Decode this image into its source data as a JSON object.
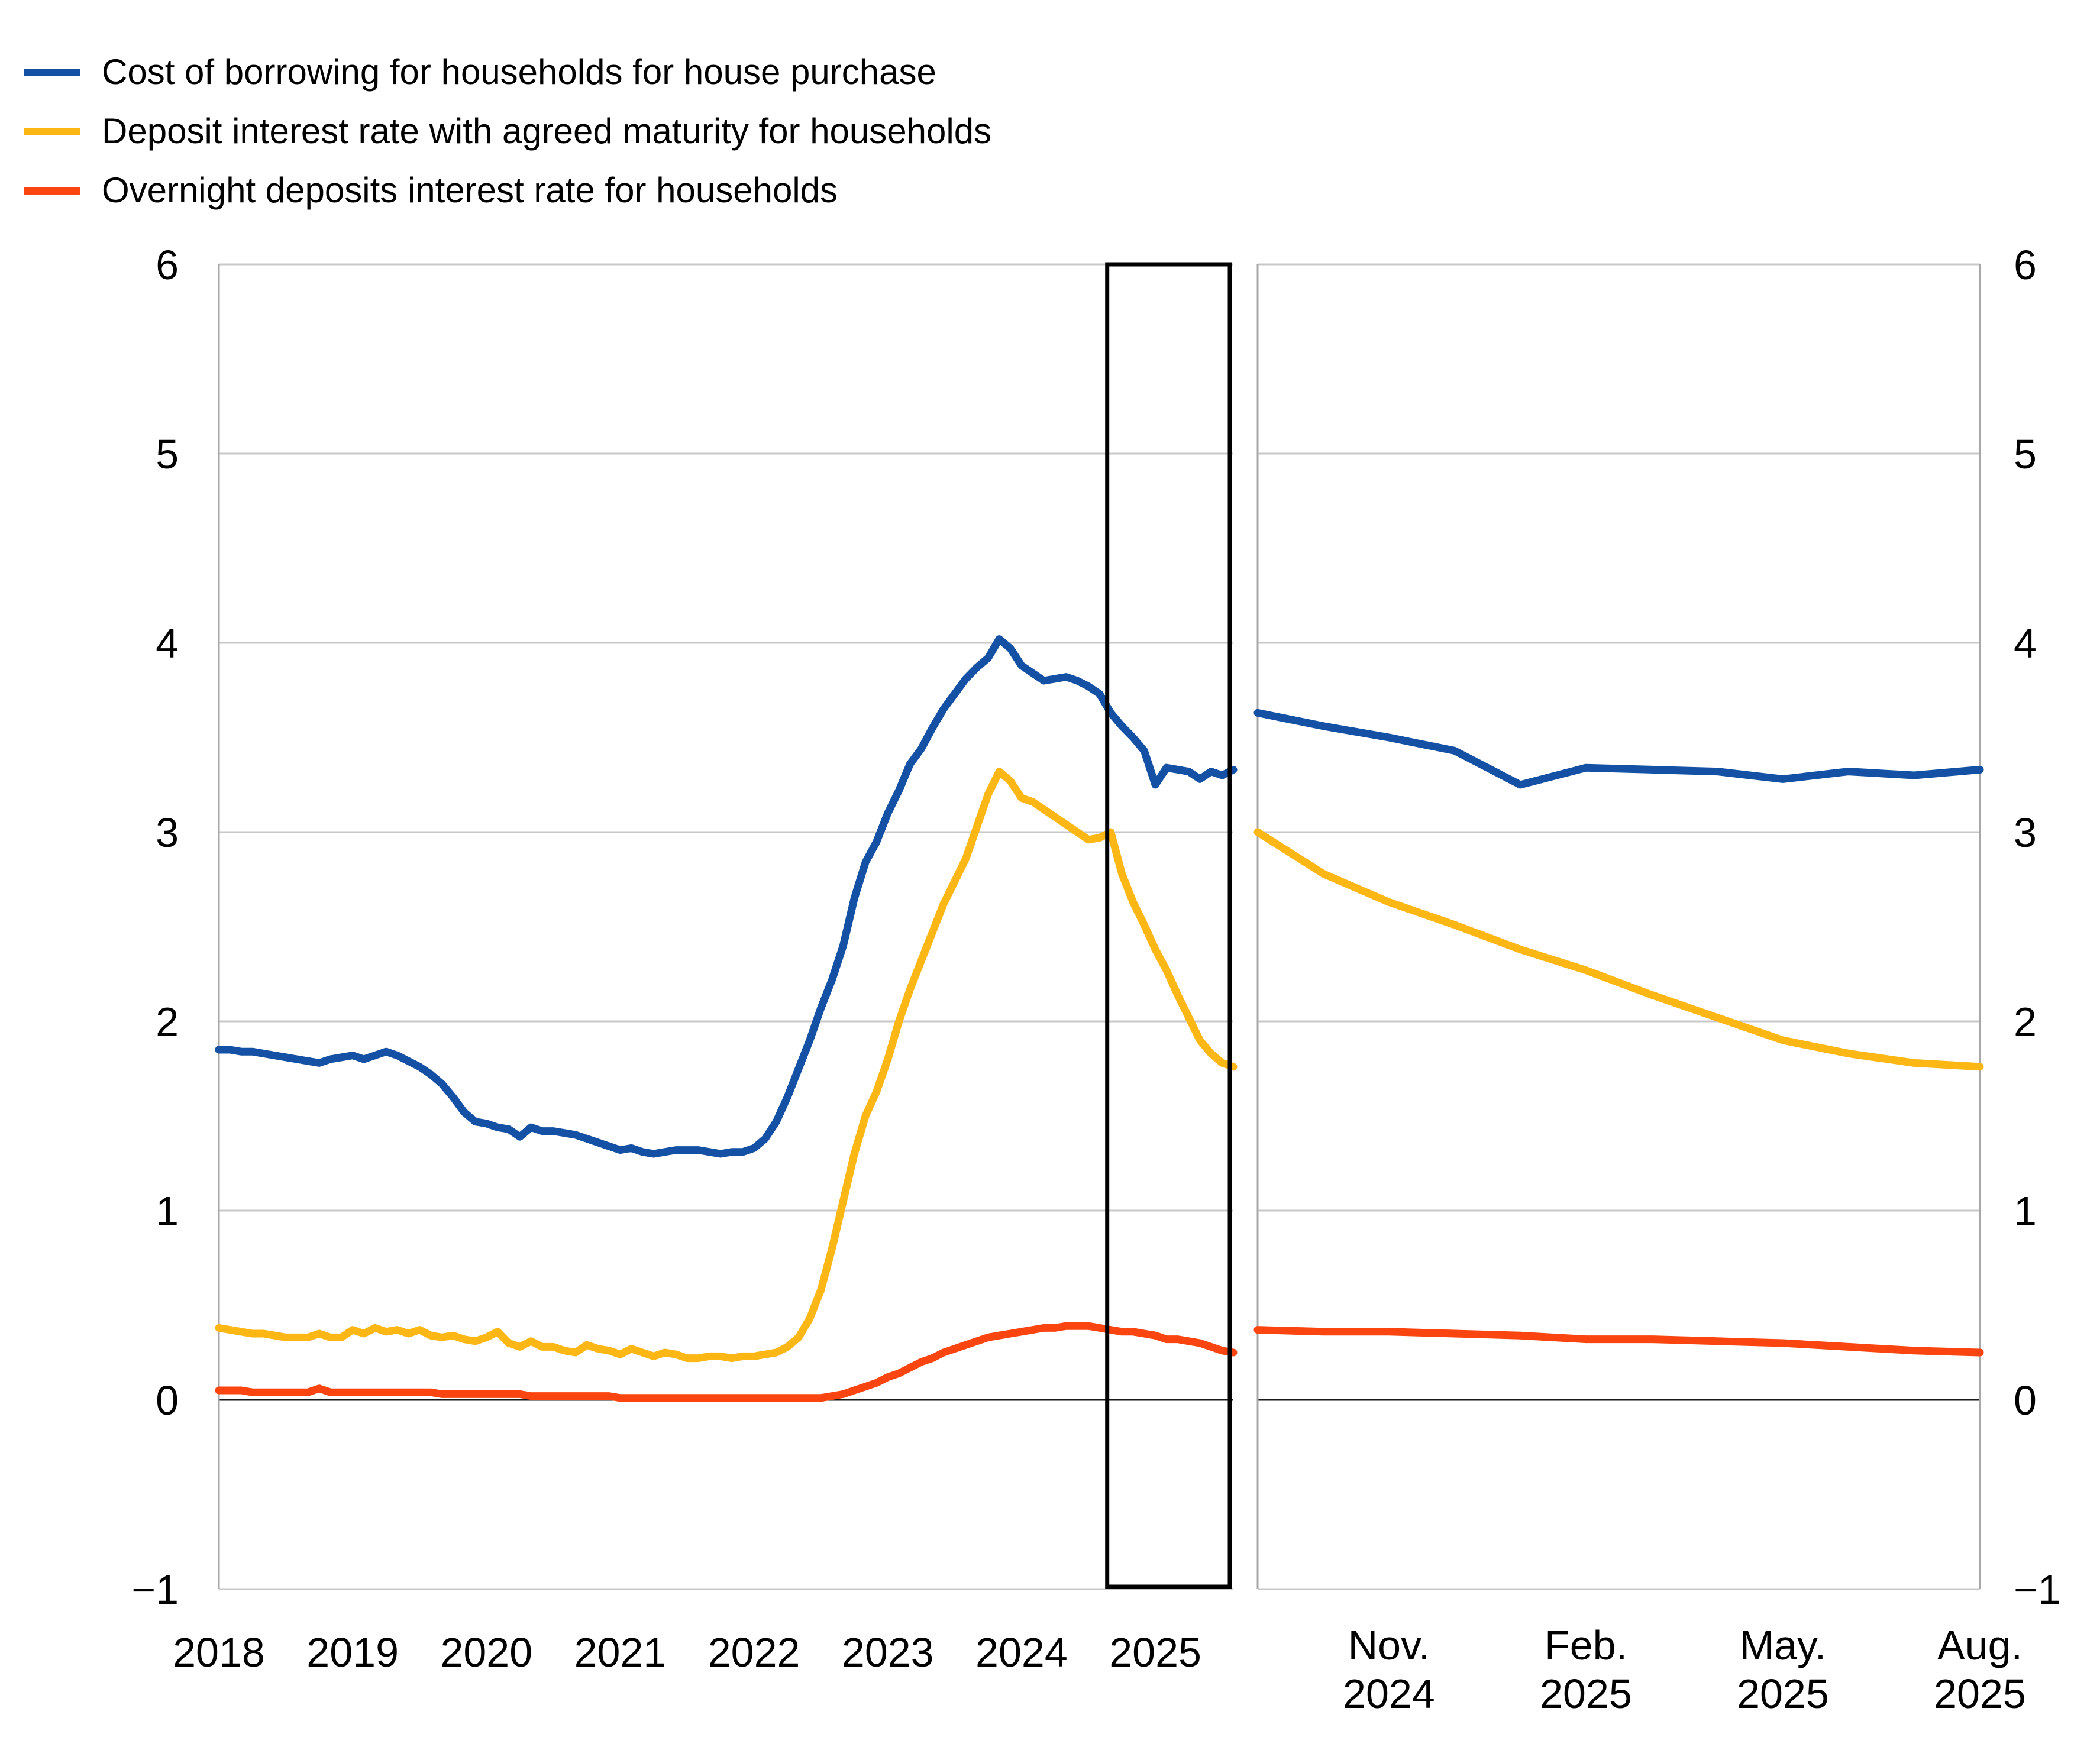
{
  "legend": {
    "items": [
      {
        "label": "Cost of borrowing for households for house purchase",
        "color": "#1451a4"
      },
      {
        "label": "Deposit interest rate with agreed maturity for households",
        "color": "#fdb714"
      },
      {
        "label": "Overnight deposits interest rate for households",
        "color": "#fb4510"
      }
    ]
  },
  "axes": {
    "ylim": [
      -1,
      6
    ],
    "y_ticks": [
      6,
      5,
      4,
      3,
      2,
      1,
      0,
      -1
    ],
    "y_tick_labels": [
      "6",
      "5",
      "4",
      "3",
      "2",
      "1",
      "0",
      "−1"
    ],
    "y_labels_both_sides": true,
    "grid": true,
    "gridline_color": "#c9c9c9",
    "zero_line_color": "#1a1a1a",
    "border_color": "#a8a8a8"
  },
  "chart_data": [
    {
      "type": "line",
      "panel": "left",
      "x_unit": "month",
      "x_start": "2018-01",
      "x_end": "2025-08",
      "ylim": [
        -1,
        6
      ],
      "grid": true,
      "legend_position": "top-left",
      "highlight_box": {
        "from": "2024-09",
        "to": "2025-08",
        "color": "#000000"
      },
      "x_ticks": [
        {
          "label": "2018",
          "month": "2018-01"
        },
        {
          "label": "2019",
          "month": "2019-01"
        },
        {
          "label": "2020",
          "month": "2020-01"
        },
        {
          "label": "2021",
          "month": "2021-01"
        },
        {
          "label": "2022",
          "month": "2022-01"
        },
        {
          "label": "2023",
          "month": "2023-01"
        },
        {
          "label": "2024",
          "month": "2024-01"
        },
        {
          "label": "2025",
          "month": "2025-01"
        }
      ],
      "series": [
        {
          "name": "Cost of borrowing for households for house purchase",
          "color": "#1451a4",
          "values": [
            1.85,
            1.85,
            1.84,
            1.84,
            1.83,
            1.82,
            1.81,
            1.8,
            1.79,
            1.78,
            1.8,
            1.81,
            1.82,
            1.8,
            1.82,
            1.84,
            1.82,
            1.79,
            1.76,
            1.72,
            1.67,
            1.6,
            1.52,
            1.47,
            1.46,
            1.44,
            1.43,
            1.39,
            1.44,
            1.42,
            1.42,
            1.41,
            1.4,
            1.38,
            1.36,
            1.34,
            1.32,
            1.33,
            1.31,
            1.3,
            1.31,
            1.32,
            1.32,
            1.32,
            1.31,
            1.3,
            1.31,
            1.31,
            1.33,
            1.38,
            1.47,
            1.6,
            1.75,
            1.9,
            2.07,
            2.22,
            2.4,
            2.65,
            2.84,
            2.95,
            3.1,
            3.22,
            3.36,
            3.44,
            3.55,
            3.65,
            3.73,
            3.81,
            3.87,
            3.92,
            4.02,
            3.97,
            3.88,
            3.84,
            3.8,
            3.81,
            3.82,
            3.8,
            3.77,
            3.73,
            3.63,
            3.56,
            3.5,
            3.43,
            3.25,
            3.34,
            3.33,
            3.32,
            3.28,
            3.32,
            3.3,
            3.33
          ]
        },
        {
          "name": "Deposit interest rate with agreed maturity for households",
          "color": "#fdb714",
          "values": [
            0.38,
            0.37,
            0.36,
            0.35,
            0.35,
            0.34,
            0.33,
            0.33,
            0.33,
            0.35,
            0.33,
            0.33,
            0.37,
            0.35,
            0.38,
            0.36,
            0.37,
            0.35,
            0.37,
            0.34,
            0.33,
            0.34,
            0.32,
            0.31,
            0.33,
            0.36,
            0.3,
            0.28,
            0.31,
            0.28,
            0.28,
            0.26,
            0.25,
            0.29,
            0.27,
            0.26,
            0.24,
            0.27,
            0.25,
            0.23,
            0.25,
            0.24,
            0.22,
            0.22,
            0.23,
            0.23,
            0.22,
            0.23,
            0.23,
            0.24,
            0.25,
            0.28,
            0.33,
            0.43,
            0.58,
            0.8,
            1.05,
            1.3,
            1.5,
            1.63,
            1.8,
            2.0,
            2.17,
            2.32,
            2.47,
            2.62,
            2.74,
            2.86,
            3.03,
            3.2,
            3.32,
            3.27,
            3.18,
            3.16,
            3.12,
            3.08,
            3.04,
            3.0,
            2.96,
            2.97,
            3.0,
            2.78,
            2.63,
            2.51,
            2.38,
            2.27,
            2.14,
            2.02,
            1.9,
            1.83,
            1.78,
            1.76
          ]
        },
        {
          "name": "Overnight deposits interest rate for households",
          "color": "#fb4510",
          "values": [
            0.05,
            0.05,
            0.05,
            0.04,
            0.04,
            0.04,
            0.04,
            0.04,
            0.04,
            0.06,
            0.04,
            0.04,
            0.04,
            0.04,
            0.04,
            0.04,
            0.04,
            0.04,
            0.04,
            0.04,
            0.03,
            0.03,
            0.03,
            0.03,
            0.03,
            0.03,
            0.03,
            0.03,
            0.02,
            0.02,
            0.02,
            0.02,
            0.02,
            0.02,
            0.02,
            0.02,
            0.01,
            0.01,
            0.01,
            0.01,
            0.01,
            0.01,
            0.01,
            0.01,
            0.01,
            0.01,
            0.01,
            0.01,
            0.01,
            0.01,
            0.01,
            0.01,
            0.01,
            0.01,
            0.01,
            0.02,
            0.03,
            0.05,
            0.07,
            0.09,
            0.12,
            0.14,
            0.17,
            0.2,
            0.22,
            0.25,
            0.27,
            0.29,
            0.31,
            0.33,
            0.34,
            0.35,
            0.36,
            0.37,
            0.38,
            0.38,
            0.39,
            0.39,
            0.39,
            0.38,
            0.37,
            0.36,
            0.36,
            0.35,
            0.34,
            0.32,
            0.32,
            0.31,
            0.3,
            0.28,
            0.26,
            0.25
          ]
        }
      ]
    },
    {
      "type": "line",
      "panel": "right",
      "x_unit": "month",
      "x_start": "2024-09",
      "x_end": "2025-08",
      "ylim": [
        -1,
        6
      ],
      "grid": true,
      "x_ticks": [
        {
          "label": "Nov.",
          "line2": "2024",
          "month": "2024-11"
        },
        {
          "label": "Feb.",
          "line2": "2025",
          "month": "2025-02"
        },
        {
          "label": "May.",
          "line2": "2025",
          "month": "2025-05"
        },
        {
          "label": "Aug.",
          "line2": "2025",
          "month": "2025-08"
        }
      ],
      "series": [
        {
          "name": "Cost of borrowing for households for house purchase",
          "color": "#1451a4",
          "values": [
            3.63,
            3.56,
            3.5,
            3.43,
            3.25,
            3.34,
            3.33,
            3.32,
            3.28,
            3.32,
            3.3,
            3.33
          ]
        },
        {
          "name": "Deposit interest rate with agreed maturity for households",
          "color": "#fdb714",
          "values": [
            3.0,
            2.78,
            2.63,
            2.51,
            2.38,
            2.27,
            2.14,
            2.02,
            1.9,
            1.83,
            1.78,
            1.76
          ]
        },
        {
          "name": "Overnight deposits interest rate for households",
          "color": "#fb4510",
          "values": [
            0.37,
            0.36,
            0.36,
            0.35,
            0.34,
            0.32,
            0.32,
            0.31,
            0.3,
            0.28,
            0.26,
            0.25
          ]
        }
      ]
    }
  ]
}
